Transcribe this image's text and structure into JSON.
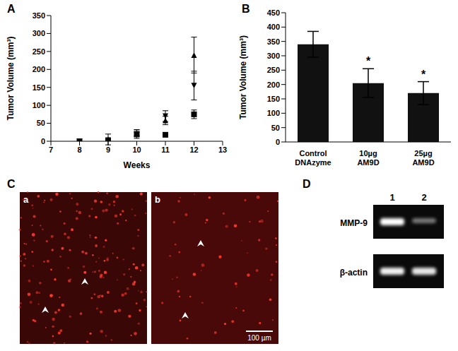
{
  "chart_data": [
    {
      "panel": "A",
      "type": "scatter",
      "x": [
        8,
        9,
        10,
        11,
        12
      ],
      "xlabel": "Weeks",
      "ylabel": "Tumor  Volume (mm³)",
      "xlim": [
        7,
        13
      ],
      "xticks": [
        7,
        8,
        9,
        10,
        11,
        12,
        13
      ],
      "ylim": [
        0,
        350
      ],
      "yticks": [
        0,
        50,
        100,
        150,
        200,
        250,
        300,
        350
      ],
      "series": [
        {
          "color": "#000000",
          "marker": "triangle",
          "values": [
            0,
            5,
            22,
            58,
            240
          ],
          "errors": [
            0,
            15,
            10,
            12,
            50
          ]
        },
        {
          "color": "#000000",
          "marker": "triangle-down",
          "values": [
            0,
            3,
            20,
            70,
            155
          ],
          "errors": [
            0,
            0,
            12,
            15,
            40
          ]
        },
        {
          "color": "#000000",
          "marker": "square",
          "values": [
            0,
            2,
            20,
            18,
            75
          ],
          "errors": [
            0,
            0,
            5,
            3,
            12
          ]
        }
      ]
    },
    {
      "panel": "B",
      "type": "bar",
      "categories": [
        "Control DNAzyme",
        "10µg AM9D",
        "25µg AM9D"
      ],
      "values": [
        340,
        205,
        170
      ],
      "errors": [
        45,
        50,
        40
      ],
      "annotations": [
        null,
        "*",
        "*"
      ],
      "ylabel": "Tumor  Volume (mm³)",
      "ylim": [
        0,
        450
      ],
      "yticks": [
        0,
        50,
        100,
        150,
        200,
        250,
        300,
        350,
        400,
        450
      ],
      "color": "#111111"
    }
  ],
  "images": [
    {
      "panel": "C",
      "subpanels": [
        "a",
        "b"
      ],
      "scale_bar": "100 µm"
    },
    {
      "panel": "D",
      "lanes": [
        "1",
        "2"
      ],
      "bands": [
        "MMP-9",
        "β-actin"
      ]
    }
  ]
}
